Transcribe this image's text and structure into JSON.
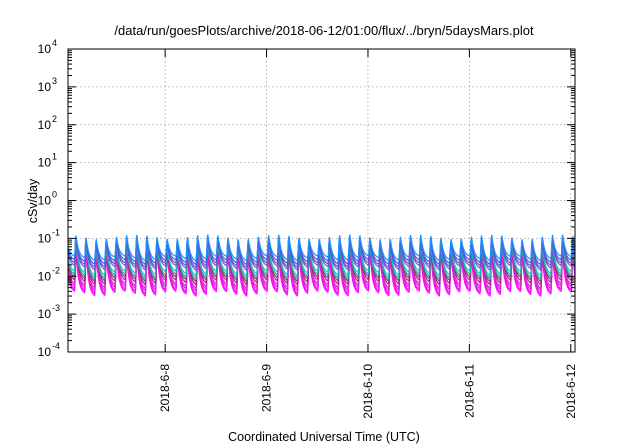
{
  "chart_data": {
    "type": "line",
    "title": "/data/run/goesPlots/archive/2018-06-12/01:00/flux/../bryn/5daysMars.plot",
    "xlabel": "Coordinated Universal Time (UTC)",
    "ylabel": "cSv/day",
    "y_scale": "log",
    "ylim": [
      0.0001,
      10000
    ],
    "y_ticks": [
      {
        "base": "10",
        "exp": "-4",
        "value": 0.0001
      },
      {
        "base": "10",
        "exp": "-3",
        "value": 0.001
      },
      {
        "base": "10",
        "exp": "-2",
        "value": 0.01
      },
      {
        "base": "10",
        "exp": "-1",
        "value": 0.1
      },
      {
        "base": "10",
        "exp": "0",
        "value": 1
      },
      {
        "base": "10",
        "exp": "1",
        "value": 10
      },
      {
        "base": "10",
        "exp": "2",
        "value": 100
      },
      {
        "base": "10",
        "exp": "3",
        "value": 1000
      },
      {
        "base": "10",
        "exp": "4",
        "value": 10000
      }
    ],
    "xlim": [
      "2018-06-07 01:00",
      "2018-06-12 01:00"
    ],
    "x_ticks": [
      {
        "label": "2018-6-8",
        "value": "2018-06-08 00:00"
      },
      {
        "label": "2018-6-9",
        "value": "2018-06-09 00:00"
      },
      {
        "label": "2018-6-10",
        "value": "2018-06-10 00:00"
      },
      {
        "label": "2018-6-11",
        "value": "2018-06-11 00:00"
      },
      {
        "label": "2018-6-12",
        "value": "2018-06-12 00:00"
      }
    ],
    "grid": true,
    "legend": "none",
    "pattern": {
      "description_free": "",
      "period_hours": 2.4,
      "day_amplitude_variation": [
        0.85,
        1.15
      ]
    },
    "series": [
      {
        "color": "#ff00ff",
        "peak": 0.045,
        "trough": 0.0035
      },
      {
        "color": "#ff00ff",
        "peak": 0.05,
        "trough": 0.004
      },
      {
        "color": "#dd22dd",
        "peak": 0.055,
        "trough": 0.0048
      },
      {
        "color": "#cc33cc",
        "peak": 0.06,
        "trough": 0.0056
      },
      {
        "color": "#b2226f",
        "peak": 0.075,
        "trough": 0.007
      },
      {
        "color": "#8a3a8a",
        "peak": 0.08,
        "trough": 0.0085
      },
      {
        "color": "#2bbfbf",
        "peak": 0.085,
        "trough": 0.012
      },
      {
        "color": "#20b2aa",
        "peak": 0.08,
        "trough": 0.01
      },
      {
        "color": "#7b4fd6",
        "peak": 0.1,
        "trough": 0.017
      },
      {
        "color": "#6050e0",
        "peak": 0.105,
        "trough": 0.02
      },
      {
        "color": "#3a5fe0",
        "peak": 0.11,
        "trough": 0.024
      },
      {
        "color": "#1e90ff",
        "peak": 0.12,
        "trough": 0.03
      }
    ]
  }
}
